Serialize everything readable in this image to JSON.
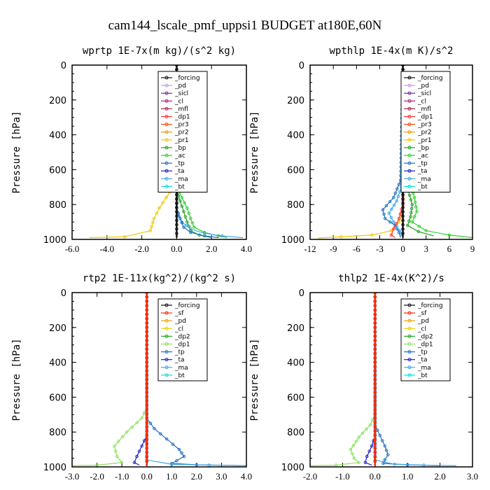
{
  "title": "cam144_lscale_pmf_uppsi1  BUDGET at180E,60N",
  "colors": {
    "forcing": "#111111",
    "pd": "#c896e6",
    "sf": "#ff2a00",
    "sicl": "#7a2aa0",
    "cl": "#b42080",
    "mfl": "#b02050",
    "dp1": "#ff3030",
    "dp2": "#22aa22",
    "pr3": "#ff4a00",
    "pr2": "#e8a000",
    "pr1": "#f0c800",
    "bp": "#20a020",
    "ac": "#30d030",
    "tp": "#2070c0",
    "ta": "#2020c8",
    "ma": "#40a8e8",
    "bt": "#00e0e0",
    "rtp_pd": "#f0a000",
    "rtp_cl": "#e8d000",
    "rtp_dp1": "#90e060"
  },
  "chart_data": [
    {
      "type": "line",
      "title": "wprtp  1E-7x(m kg)/(s^2 kg)",
      "ylabel": "Pressure [hPa]",
      "xlim": [
        -6,
        4
      ],
      "ylim": [
        1000,
        0
      ],
      "xticks": [
        "-6.0",
        "-4.0",
        "-2.0",
        "0.0",
        "2.0",
        "4.0"
      ],
      "yticks": [
        "0",
        "200",
        "400",
        "600",
        "800",
        "1000"
      ],
      "legend": [
        "_forcing",
        "_pd",
        "_sicl",
        "_cl",
        "_mfl",
        "_dp1",
        "_pr3",
        "_pr2",
        "_pr1",
        "_bp",
        "_ac",
        "_tp",
        "_ta",
        "_ma",
        "_bt"
      ],
      "series": [
        {
          "name": "_pr1",
          "color": "pr1",
          "points": [
            [
              0,
              0
            ],
            [
              0,
              650
            ],
            [
              -0.2,
              700
            ],
            [
              -0.6,
              760
            ],
            [
              -1.0,
              820
            ],
            [
              -1.3,
              880
            ],
            [
              -1.5,
              950
            ],
            [
              -3,
              985
            ],
            [
              -5,
              990
            ]
          ]
        },
        {
          "name": "_ac",
          "color": "ac",
          "points": [
            [
              0,
              0
            ],
            [
              0,
              700
            ],
            [
              0.3,
              760
            ],
            [
              0.6,
              820
            ],
            [
              0.8,
              880
            ],
            [
              1.0,
              930
            ],
            [
              1.6,
              960
            ],
            [
              2.4,
              980
            ],
            [
              2.9,
              990
            ]
          ]
        },
        {
          "name": "_bp",
          "color": "bp",
          "points": [
            [
              0,
              0
            ],
            [
              0,
              720
            ],
            [
              0.2,
              780
            ],
            [
              0.4,
              840
            ],
            [
              0.6,
              900
            ],
            [
              0.8,
              950
            ],
            [
              1.3,
              975
            ],
            [
              2.0,
              990
            ]
          ]
        },
        {
          "name": "_ma",
          "color": "ma",
          "points": [
            [
              0,
              0
            ],
            [
              0,
              840
            ],
            [
              0.3,
              900
            ],
            [
              0.8,
              940
            ],
            [
              1.6,
              965
            ],
            [
              2.6,
              980
            ],
            [
              3.8,
              990
            ]
          ]
        },
        {
          "name": "_tp",
          "color": "tp",
          "points": [
            [
              0,
              0
            ],
            [
              0,
              820
            ],
            [
              0.2,
              880
            ],
            [
              0.4,
              930
            ],
            [
              0.8,
              960
            ],
            [
              1.6,
              980
            ],
            [
              2.4,
              990
            ]
          ]
        },
        {
          "name": "_forcing",
          "color": "forcing",
          "points": [
            [
              0,
              0
            ],
            [
              0,
              990
            ]
          ]
        }
      ]
    },
    {
      "type": "line",
      "title": "wpthlp  1E-4x(m K)/s^2",
      "ylabel": "Pressure [hPa]",
      "xlim": [
        -12,
        9
      ],
      "ylim": [
        1000,
        0
      ],
      "xticks": [
        "-12",
        "-9",
        "-6",
        "-3",
        "0",
        "3",
        "6",
        "9"
      ],
      "yticks": [
        "0",
        "200",
        "400",
        "600",
        "800",
        "1000"
      ],
      "legend": [
        "_forcing",
        "_pd",
        "_sicl",
        "_cl",
        "_mfl",
        "_dp1",
        "_pr3",
        "_pr2",
        "_pr1",
        "_bp",
        "_ac",
        "_tp",
        "_ta",
        "_ma",
        "_bt"
      ],
      "series": [
        {
          "name": "_pr1",
          "color": "pr1",
          "points": [
            [
              0,
              0
            ],
            [
              0,
              840
            ],
            [
              -0.5,
              900
            ],
            [
              -1.5,
              950
            ],
            [
              -4,
              975
            ],
            [
              -8,
              985
            ],
            [
              -11,
              992
            ]
          ]
        },
        {
          "name": "_ac",
          "color": "ac",
          "points": [
            [
              0,
              0
            ],
            [
              0.2,
              560
            ],
            [
              0.8,
              660
            ],
            [
              1.5,
              760
            ],
            [
              1.8,
              840
            ],
            [
              1.2,
              900
            ],
            [
              3,
              950
            ],
            [
              6,
              975
            ],
            [
              9,
              990
            ]
          ]
        },
        {
          "name": "_bp",
          "color": "bp",
          "points": [
            [
              0,
              0
            ],
            [
              0.2,
              640
            ],
            [
              0.7,
              720
            ],
            [
              1.2,
              800
            ],
            [
              1.0,
              870
            ],
            [
              0.6,
              920
            ],
            [
              2,
              955
            ],
            [
              4,
              980
            ]
          ]
        },
        {
          "name": "_tp",
          "color": "tp",
          "points": [
            [
              0,
              0
            ],
            [
              -0.3,
              660
            ],
            [
              -1.2,
              760
            ],
            [
              -2.6,
              830
            ],
            [
              -2.3,
              880
            ],
            [
              -1.0,
              920
            ],
            [
              -0.5,
              960
            ],
            [
              -0.3,
              990
            ]
          ]
        },
        {
          "name": "_ma",
          "color": "ma",
          "points": [
            [
              0,
              0
            ],
            [
              -0.2,
              700
            ],
            [
              -0.8,
              780
            ],
            [
              -1.8,
              850
            ],
            [
              -1.2,
              900
            ],
            [
              -0.4,
              950
            ],
            [
              0,
              990
            ]
          ]
        },
        {
          "name": "_dp1",
          "color": "dp1",
          "points": [
            [
              0,
              0
            ],
            [
              0,
              800
            ],
            [
              -0.5,
              880
            ],
            [
              -1.2,
              940
            ],
            [
              -1.5,
              975
            ],
            [
              -1.0,
              990
            ]
          ]
        },
        {
          "name": "_pd",
          "color": "pd",
          "points": [
            [
              0,
              0
            ],
            [
              0,
              990
            ]
          ]
        },
        {
          "name": "_forcing",
          "color": "forcing",
          "points": [
            [
              0,
              0
            ],
            [
              0,
              990
            ]
          ]
        }
      ]
    },
    {
      "type": "line",
      "title": "rtp2  1E-11x(kg^2)/(kg^2 s)",
      "ylabel": "Pressure [hPa]",
      "xlim": [
        -3,
        4
      ],
      "ylim": [
        1000,
        0
      ],
      "xticks": [
        "-3.0",
        "-2.0",
        "-1.0",
        "0.0",
        "1.0",
        "2.0",
        "3.0",
        "4.0"
      ],
      "yticks": [
        "0",
        "200",
        "400",
        "600",
        "800",
        "1000"
      ],
      "legend": [
        "_forcing",
        "_sf",
        "_pd",
        "_cl",
        "_dp2",
        "_dp1",
        "_tp",
        "_ta",
        "_ma",
        "_bt"
      ],
      "series": [
        {
          "name": "_dp1",
          "color": "rtp_dp1",
          "points": [
            [
              0,
              0
            ],
            [
              0,
              660
            ],
            [
              -0.2,
              720
            ],
            [
              -0.8,
              800
            ],
            [
              -1.3,
              880
            ],
            [
              -1.2,
              940
            ],
            [
              -1.0,
              975
            ],
            [
              -2.0,
              990
            ],
            [
              -3,
              993
            ]
          ]
        },
        {
          "name": "_ta",
          "color": "ta",
          "points": [
            [
              0,
              0
            ],
            [
              0,
              820
            ],
            [
              -0.2,
              880
            ],
            [
              -0.4,
              940
            ],
            [
              -0.5,
              975
            ],
            [
              -0.3,
              990
            ]
          ]
        },
        {
          "name": "_tp",
          "color": "tp",
          "points": [
            [
              0,
              0
            ],
            [
              0,
              720
            ],
            [
              0.3,
              780
            ],
            [
              0.8,
              840
            ],
            [
              1.3,
              900
            ],
            [
              1.5,
              940
            ],
            [
              1.2,
              965
            ],
            [
              1.0,
              980
            ],
            [
              2,
              988
            ],
            [
              4,
              993
            ]
          ]
        },
        {
          "name": "_ma",
          "color": "ma",
          "points": [
            [
              0,
              0
            ],
            [
              0,
              960
            ],
            [
              1,
              985
            ],
            [
              2.5,
              990
            ],
            [
              4,
              993
            ]
          ]
        },
        {
          "name": "_forcing",
          "color": "forcing",
          "points": [
            [
              0,
              0
            ],
            [
              0,
              993
            ]
          ]
        },
        {
          "name": "_sf",
          "color": "sf",
          "points": [
            [
              0,
              0
            ],
            [
              0,
              993
            ]
          ]
        }
      ]
    },
    {
      "type": "line",
      "title": "thlp2  1E-4x(K^2)/s",
      "ylabel": "Pressure [hPa]",
      "xlim": [
        -2,
        3
      ],
      "ylim": [
        1000,
        0
      ],
      "xticks": [
        "-2.0",
        "-1.0",
        "0.0",
        "1.0",
        "2.0",
        "3.0"
      ],
      "yticks": [
        "0",
        "200",
        "400",
        "600",
        "800",
        "1000"
      ],
      "legend": [
        "_forcing",
        "_sf",
        "_pd",
        "_cl",
        "_dp2",
        "_dp1",
        "_tp",
        "_ta",
        "_ma",
        "_bt"
      ],
      "series": [
        {
          "name": "_dp1",
          "color": "rtp_dp1",
          "points": [
            [
              0,
              0
            ],
            [
              0,
              700
            ],
            [
              -0.15,
              760
            ],
            [
              -0.5,
              830
            ],
            [
              -0.75,
              900
            ],
            [
              -0.65,
              950
            ],
            [
              -0.5,
              975
            ],
            [
              -1.2,
              990
            ],
            [
              -2,
              993
            ]
          ]
        },
        {
          "name": "_ta",
          "color": "ta",
          "points": [
            [
              0,
              0
            ],
            [
              0,
              820
            ],
            [
              -0.1,
              880
            ],
            [
              -0.25,
              940
            ],
            [
              -0.3,
              975
            ],
            [
              -0.1,
              990
            ]
          ]
        },
        {
          "name": "_tp",
          "color": "tp",
          "points": [
            [
              0,
              0
            ],
            [
              0,
              760
            ],
            [
              0.15,
              820
            ],
            [
              0.3,
              880
            ],
            [
              0.4,
              930
            ],
            [
              0.3,
              960
            ],
            [
              0.25,
              980
            ],
            [
              1,
              988
            ],
            [
              2,
              993
            ]
          ]
        },
        {
          "name": "_ma",
          "color": "ma",
          "points": [
            [
              0,
              0
            ],
            [
              0,
              960
            ],
            [
              0.6,
              985
            ],
            [
              1.5,
              990
            ],
            [
              2.5,
              993
            ]
          ]
        },
        {
          "name": "_forcing",
          "color": "forcing",
          "points": [
            [
              0,
              0
            ],
            [
              0,
              993
            ]
          ]
        },
        {
          "name": "_sf",
          "color": "sf",
          "points": [
            [
              0,
              0
            ],
            [
              0,
              993
            ]
          ]
        }
      ]
    }
  ]
}
